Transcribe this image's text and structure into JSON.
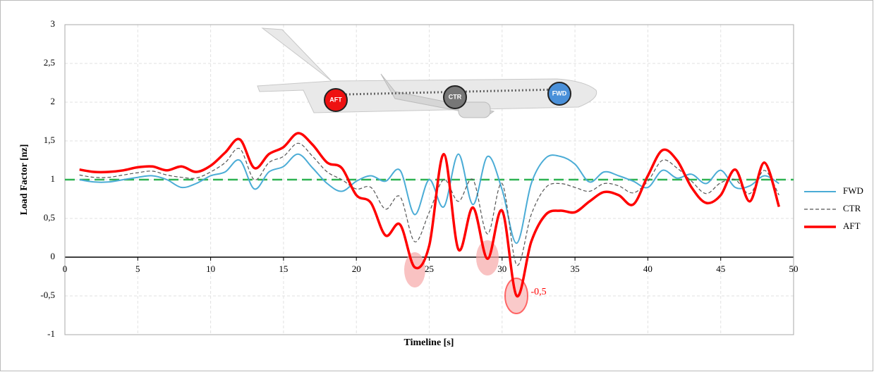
{
  "chart_data": {
    "type": "line",
    "xlabel": "Timeline [s]",
    "ylabel": "Load Factor [nz]",
    "x": [
      1,
      2,
      3,
      4,
      5,
      6,
      7,
      8,
      9,
      10,
      11,
      12,
      13,
      14,
      15,
      16,
      17,
      18,
      19,
      20,
      21,
      22,
      23,
      24,
      25,
      26,
      27,
      28,
      29,
      30,
      31,
      32,
      33,
      34,
      35,
      36,
      37,
      38,
      39,
      40,
      41,
      42,
      43,
      44,
      45,
      46,
      47,
      48,
      49
    ],
    "series": [
      {
        "name": "FWD",
        "color": "#4bacd6",
        "width": 2,
        "dash": false,
        "values": [
          1.0,
          0.97,
          0.97,
          1.0,
          1.03,
          1.05,
          1.0,
          0.9,
          0.95,
          1.05,
          1.1,
          1.25,
          0.88,
          1.1,
          1.17,
          1.33,
          1.15,
          0.95,
          0.85,
          0.98,
          1.05,
          0.98,
          1.12,
          0.55,
          1.0,
          0.65,
          1.33,
          0.68,
          1.3,
          0.87,
          0.18,
          0.95,
          1.28,
          1.3,
          1.2,
          0.97,
          1.1,
          1.05,
          0.98,
          0.9,
          1.12,
          1.02,
          1.07,
          0.95,
          1.12,
          0.9,
          0.92,
          1.05,
          0.95
        ]
      },
      {
        "name": "CTR",
        "color": "#555555",
        "width": 1.2,
        "dash": true,
        "values": [
          1.06,
          1.03,
          1.03,
          1.06,
          1.09,
          1.11,
          1.06,
          1.03,
          1.02,
          1.1,
          1.22,
          1.4,
          1.0,
          1.22,
          1.3,
          1.47,
          1.3,
          1.1,
          1.0,
          0.88,
          0.9,
          0.62,
          0.78,
          0.2,
          0.58,
          1.0,
          0.72,
          1.0,
          0.3,
          0.95,
          -0.1,
          0.55,
          0.9,
          0.95,
          0.9,
          0.85,
          0.95,
          0.92,
          0.83,
          0.98,
          1.25,
          1.15,
          0.98,
          0.82,
          0.96,
          1.0,
          0.82,
          1.12,
          0.8
        ]
      },
      {
        "name": "AFT",
        "color": "#ff0000",
        "width": 3.5,
        "dash": false,
        "values": [
          1.13,
          1.1,
          1.1,
          1.12,
          1.16,
          1.17,
          1.12,
          1.17,
          1.1,
          1.18,
          1.35,
          1.52,
          1.15,
          1.33,
          1.42,
          1.6,
          1.45,
          1.22,
          1.15,
          0.8,
          0.7,
          0.28,
          0.42,
          -0.13,
          0.15,
          1.33,
          0.1,
          0.64,
          -0.02,
          0.6,
          -0.5,
          0.2,
          0.55,
          0.6,
          0.58,
          0.72,
          0.84,
          0.8,
          0.68,
          1.05,
          1.38,
          1.25,
          0.9,
          0.7,
          0.8,
          1.13,
          0.72,
          1.22,
          0.65
        ]
      }
    ],
    "reference_line": {
      "value": 1,
      "color": "#2eb352"
    },
    "xlim": [
      0,
      50
    ],
    "xticks": [
      0,
      5,
      10,
      15,
      20,
      25,
      30,
      35,
      40,
      45,
      50
    ],
    "ylim": [
      -1,
      3
    ],
    "yticks": [
      -1,
      {
        "value": -0.5,
        "label": "-0,5"
      },
      0,
      {
        "value": 0.5,
        "label": "0,5"
      },
      1,
      {
        "value": 1.5,
        "label": "1,5"
      },
      2,
      {
        "value": 2.5,
        "label": "2,5"
      },
      3
    ],
    "grid": true,
    "annotation": {
      "x": 31,
      "y": -0.5,
      "label": "-0,5",
      "color": "#ff0000"
    },
    "airplane_labels": [
      "AFT",
      "CTR",
      "FWD"
    ]
  }
}
